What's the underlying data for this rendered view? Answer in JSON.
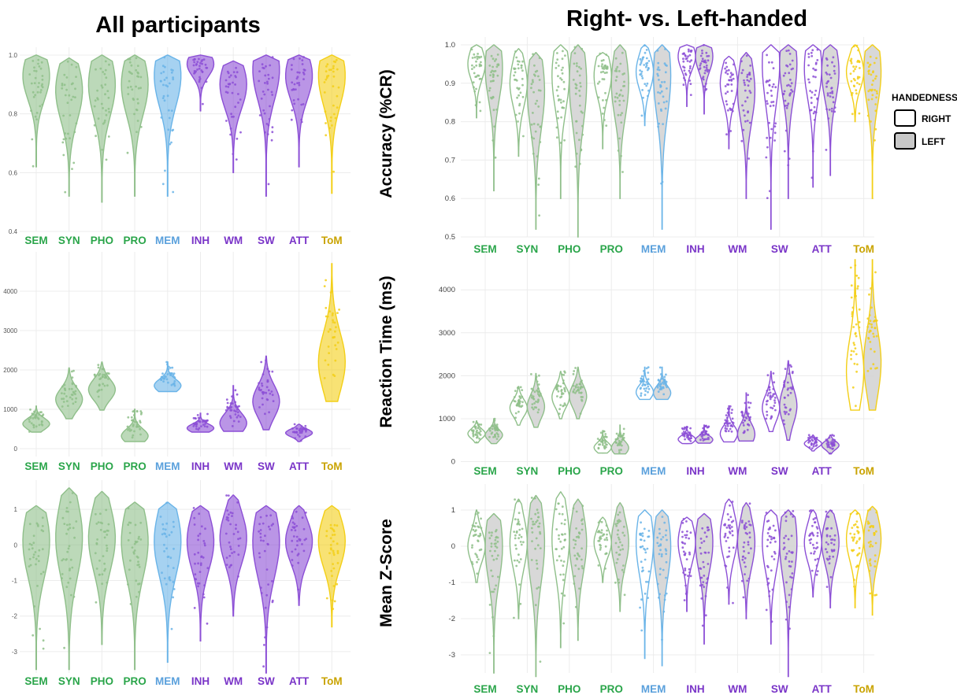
{
  "titles": {
    "left": "All participants",
    "right": "Right- vs. Left-handed"
  },
  "row_labels": [
    "Accuracy (%CR)",
    "Reaction Time (ms)",
    "Mean Z-Score"
  ],
  "legend": {
    "title": "HANDEDNESS",
    "items": [
      {
        "label": "RIGHT",
        "fill": "#ffffff"
      },
      {
        "label": "LEFT",
        "fill": "#c8c8c8"
      }
    ]
  },
  "colors": {
    "language": "#8fbf8a",
    "language_label": "#2aa54a",
    "memory": "#6ab4e8",
    "memory_label": "#5aa0dc",
    "executive": "#8c4fd6",
    "executive_label": "#7a35c8",
    "tom": "#f3cf17",
    "tom_label": "#c9a300"
  },
  "chart_data": [
    {
      "type": "violin",
      "panel": "All participants",
      "ylabel": "Accuracy (%CR)",
      "ylim": [
        0.4,
        1.0
      ],
      "yticks": [
        "0.4",
        "0.6",
        "0.8",
        "1.0"
      ],
      "categories": [
        "SEM",
        "SYN",
        "PHO",
        "PRO",
        "MEM",
        "INH",
        "WM",
        "SW",
        "ATT",
        "ToM"
      ],
      "groups": [
        "language",
        "language",
        "language",
        "language",
        "memory",
        "executive",
        "executive",
        "executive",
        "executive",
        "tom"
      ],
      "min": [
        0.62,
        0.52,
        0.5,
        0.52,
        0.52,
        0.81,
        0.6,
        0.52,
        0.62,
        0.53
      ],
      "max": [
        1.0,
        0.99,
        1.0,
        1.0,
        1.0,
        1.0,
        0.98,
        1.0,
        1.0,
        1.0
      ],
      "median": [
        0.93,
        0.88,
        0.9,
        0.9,
        0.93,
        0.97,
        0.9,
        0.95,
        0.93,
        0.93
      ]
    },
    {
      "type": "violin",
      "panel": "Right- vs. Left-handed",
      "ylabel": "Accuracy (%CR)",
      "ylim": [
        0.5,
        1.0
      ],
      "yticks": [
        "0.5",
        "0.6",
        "0.7",
        "0.8",
        "0.9",
        "1.0"
      ],
      "categories": [
        "SEM",
        "SYN",
        "PHO",
        "PRO",
        "MEM",
        "INH",
        "WM",
        "SW",
        "ATT",
        "ToM"
      ],
      "groups": [
        "language",
        "language",
        "language",
        "language",
        "memory",
        "executive",
        "executive",
        "executive",
        "executive",
        "tom"
      ],
      "series": [
        {
          "name": "RIGHT",
          "min": [
            0.81,
            0.71,
            0.6,
            0.73,
            0.79,
            0.84,
            0.73,
            0.52,
            0.63,
            0.8
          ],
          "max": [
            1.0,
            0.99,
            1.0,
            0.98,
            1.0,
            1.0,
            0.97,
            1.0,
            1.0,
            1.0
          ],
          "median": [
            0.95,
            0.9,
            0.92,
            0.92,
            0.93,
            0.97,
            0.9,
            0.95,
            0.94,
            0.93
          ]
        },
        {
          "name": "LEFT",
          "min": [
            0.62,
            0.52,
            0.5,
            0.6,
            0.52,
            0.82,
            0.6,
            0.6,
            0.66,
            0.6
          ],
          "max": [
            1.0,
            0.98,
            1.0,
            1.0,
            1.0,
            1.0,
            0.98,
            1.0,
            1.0,
            1.0
          ],
          "median": [
            0.94,
            0.88,
            0.9,
            0.9,
            0.92,
            0.97,
            0.88,
            0.95,
            0.93,
            0.93
          ]
        }
      ]
    },
    {
      "type": "violin",
      "panel": "All participants",
      "ylabel": "Reaction Time (ms)",
      "ylim": [
        -200,
        4800
      ],
      "yticks": [
        "0",
        "1000",
        "2000",
        "3000",
        "4000"
      ],
      "categories": [
        "SEM",
        "SYN",
        "PHO",
        "PRO",
        "MEM",
        "INH",
        "WM",
        "SW",
        "ATT",
        "ToM"
      ],
      "groups": [
        "language",
        "language",
        "language",
        "language",
        "memory",
        "executive",
        "executive",
        "executive",
        "executive",
        "tom"
      ],
      "min": [
        420,
        760,
        980,
        180,
        1450,
        420,
        440,
        480,
        180,
        1200
      ],
      "max": [
        1080,
        2050,
        2200,
        1000,
        2200,
        900,
        1600,
        2350,
        620,
        4700
      ],
      "median": [
        630,
        1250,
        1500,
        320,
        1600,
        520,
        650,
        1200,
        400,
        2200
      ]
    },
    {
      "type": "violin",
      "panel": "Right- vs. Left-handed",
      "ylabel": "Reaction Time (ms)",
      "ylim": [
        -100,
        4700
      ],
      "yticks": [
        "0",
        "1000",
        "2000",
        "3000",
        "4000"
      ],
      "categories": [
        "SEM",
        "SYN",
        "PHO",
        "PRO",
        "MEM",
        "INH",
        "WM",
        "SW",
        "ATT",
        "ToM"
      ],
      "groups": [
        "language",
        "language",
        "language",
        "language",
        "memory",
        "executive",
        "executive",
        "executive",
        "executive",
        "tom"
      ],
      "series": [
        {
          "name": "RIGHT",
          "min": [
            440,
            850,
            1000,
            200,
            1450,
            420,
            460,
            700,
            250,
            1200
          ],
          "max": [
            950,
            1750,
            2100,
            720,
            2200,
            820,
            1300,
            2100,
            620,
            4700
          ],
          "median": [
            650,
            1250,
            1500,
            330,
            1620,
            520,
            650,
            1250,
            420,
            2100
          ]
        },
        {
          "name": "LEFT",
          "min": [
            420,
            800,
            1000,
            180,
            1450,
            430,
            480,
            500,
            180,
            1200
          ],
          "max": [
            1000,
            2050,
            2200,
            850,
            2200,
            850,
            1600,
            2350,
            620,
            4700
          ],
          "median": [
            620,
            1280,
            1520,
            320,
            1600,
            510,
            640,
            1300,
            380,
            2300
          ]
        }
      ]
    },
    {
      "type": "violin",
      "panel": "All participants",
      "ylabel": "Mean Z-Score",
      "ylim": [
        -3.6,
        1.6
      ],
      "yticks": [
        "-3",
        "-2",
        "-1",
        "0",
        "1"
      ],
      "categories": [
        "SEM",
        "SYN",
        "PHO",
        "PRO",
        "MEM",
        "INH",
        "WM",
        "SW",
        "ATT",
        "ToM"
      ],
      "groups": [
        "language",
        "language",
        "language",
        "language",
        "memory",
        "executive",
        "executive",
        "executive",
        "executive",
        "tom"
      ],
      "min": [
        -3.5,
        -3.5,
        -2.8,
        -3.5,
        -3.3,
        -2.7,
        -2.0,
        -3.6,
        -1.7,
        -2.3
      ],
      "max": [
        1.1,
        1.6,
        1.5,
        1.2,
        1.2,
        1.1,
        1.4,
        1.1,
        1.1,
        1.1
      ],
      "median": [
        0.1,
        0.2,
        0.2,
        0.1,
        0.1,
        0.1,
        0.2,
        0.1,
        0.1,
        0.1
      ]
    },
    {
      "type": "violin",
      "panel": "Right- vs. Left-handed",
      "ylabel": "Mean Z-Score",
      "ylim": [
        -3.5,
        1.5
      ],
      "yticks": [
        "-3",
        "-2",
        "-1",
        "0",
        "1"
      ],
      "categories": [
        "SEM",
        "SYN",
        "PHO",
        "PRO",
        "MEM",
        "INH",
        "WM",
        "SW",
        "ATT",
        "ToM"
      ],
      "groups": [
        "language",
        "language",
        "language",
        "language",
        "memory",
        "executive",
        "executive",
        "executive",
        "executive",
        "tom"
      ],
      "series": [
        {
          "name": "RIGHT",
          "min": [
            -1.0,
            -2.0,
            -2.8,
            -1.0,
            -3.1,
            -1.8,
            -1.6,
            -2.7,
            -1.4,
            -1.7
          ],
          "max": [
            1.0,
            1.3,
            1.5,
            0.8,
            1.0,
            0.8,
            1.3,
            1.0,
            1.0,
            1.0
          ],
          "median": [
            0.0,
            0.1,
            0.2,
            0.1,
            0.1,
            0.1,
            0.3,
            0.1,
            0.1,
            0.2
          ]
        },
        {
          "name": "LEFT",
          "min": [
            -3.5,
            -3.6,
            -2.6,
            -1.8,
            -3.3,
            -2.7,
            -2.0,
            -3.6,
            -1.7,
            -1.9
          ],
          "max": [
            0.9,
            1.4,
            1.3,
            1.2,
            1.0,
            0.9,
            1.2,
            1.0,
            1.0,
            1.1
          ],
          "median": [
            0.0,
            0.1,
            0.1,
            0.1,
            0.0,
            0.1,
            0.1,
            0.1,
            0.1,
            0.2
          ]
        }
      ]
    }
  ]
}
